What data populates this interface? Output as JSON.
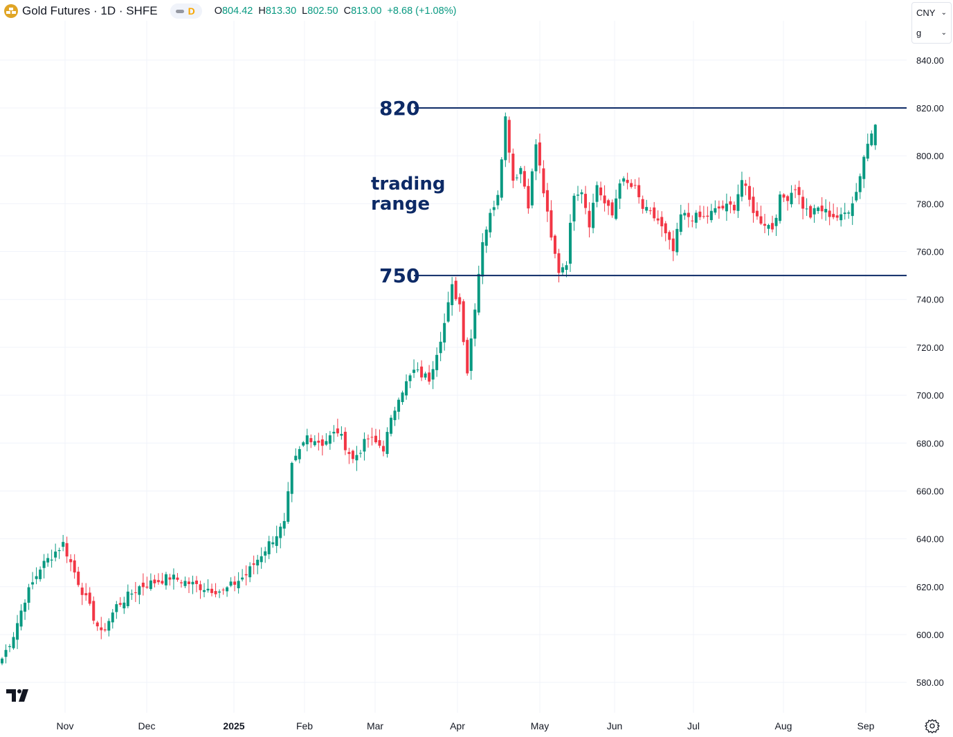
{
  "header": {
    "symbol": "Gold Futures · 1D · SHFE",
    "interval_badge": "D",
    "ohlc": [
      {
        "k": "O",
        "v": "804.42"
      },
      {
        "k": "H",
        "v": "813.30"
      },
      {
        "k": "L",
        "v": "802.50"
      },
      {
        "k": "C",
        "v": "813.00"
      },
      {
        "k": "",
        "v": "+8.68 (+1.08%)"
      }
    ]
  },
  "unit_selector": {
    "currency": "CNY",
    "unit": "g"
  },
  "colors": {
    "up": "#089981",
    "down": "#f23645",
    "grid": "#f0f3fa",
    "axis_text": "#131722",
    "annotation": "#0d2a66"
  },
  "icons": [
    "gold-logo-icon",
    "chevron-down-icon",
    "tradingview-logo-icon",
    "settings-icon"
  ],
  "chart_data": {
    "type": "candlestick",
    "y_axis": {
      "min": 570,
      "max": 845,
      "ticks": [
        "840.00",
        "820.00",
        "800.00",
        "780.00",
        "760.00",
        "740.00",
        "720.00",
        "700.00",
        "680.00",
        "660.00",
        "640.00",
        "620.00",
        "600.00",
        "580.00"
      ]
    },
    "x_axis_labels": [
      "Nov",
      "Dec",
      "2025",
      "Feb",
      "Mar",
      "Apr",
      "May",
      "Jun",
      "Jul",
      "Aug",
      "Sep"
    ],
    "annotations": {
      "levels": [
        {
          "label": "820",
          "value": 820
        },
        {
          "label": "750",
          "value": 750
        }
      ],
      "text": [
        "trading",
        "range"
      ]
    },
    "anchors": [
      [
        0,
        590
      ],
      [
        3,
        600
      ],
      [
        6,
        615
      ],
      [
        10,
        628
      ],
      [
        16,
        638
      ],
      [
        20,
        622
      ],
      [
        26,
        600
      ],
      [
        30,
        612
      ],
      [
        36,
        620
      ],
      [
        44,
        624
      ],
      [
        52,
        620
      ],
      [
        58,
        618
      ],
      [
        64,
        625
      ],
      [
        70,
        638
      ],
      [
        74,
        646
      ],
      [
        76,
        670
      ],
      [
        80,
        683
      ],
      [
        84,
        680
      ],
      [
        88,
        685
      ],
      [
        92,
        673
      ],
      [
        96,
        682
      ],
      [
        100,
        678
      ],
      [
        104,
        700
      ],
      [
        108,
        710
      ],
      [
        112,
        707
      ],
      [
        116,
        730
      ],
      [
        118,
        745
      ],
      [
        120,
        738
      ],
      [
        122,
        710
      ],
      [
        126,
        765
      ],
      [
        130,
        785
      ],
      [
        132,
        816
      ],
      [
        134,
        790
      ],
      [
        136,
        795
      ],
      [
        138,
        780
      ],
      [
        140,
        805
      ],
      [
        142,
        785
      ],
      [
        144,
        765
      ],
      [
        146,
        752
      ],
      [
        148,
        756
      ],
      [
        150,
        785
      ],
      [
        152,
        786
      ],
      [
        154,
        772
      ],
      [
        156,
        788
      ],
      [
        158,
        780
      ],
      [
        160,
        775
      ],
      [
        162,
        790
      ],
      [
        166,
        786
      ],
      [
        168,
        778
      ],
      [
        172,
        773
      ],
      [
        176,
        760
      ],
      [
        178,
        775
      ],
      [
        184,
        774
      ],
      [
        188,
        778
      ],
      [
        192,
        779
      ],
      [
        194,
        790
      ],
      [
        196,
        781
      ],
      [
        198,
        774
      ],
      [
        202,
        770
      ],
      [
        204,
        782
      ],
      [
        206,
        783
      ],
      [
        208,
        787
      ],
      [
        210,
        779
      ],
      [
        212,
        775
      ],
      [
        214,
        778
      ],
      [
        218,
        775
      ],
      [
        220,
        774
      ],
      [
        222,
        778
      ],
      [
        224,
        785
      ],
      [
        226,
        800
      ],
      [
        228,
        810
      ],
      [
        229,
        813
      ]
    ],
    "last": {
      "open": 804.42,
      "high": 813.3,
      "low": 802.5,
      "close": 813.0
    }
  }
}
